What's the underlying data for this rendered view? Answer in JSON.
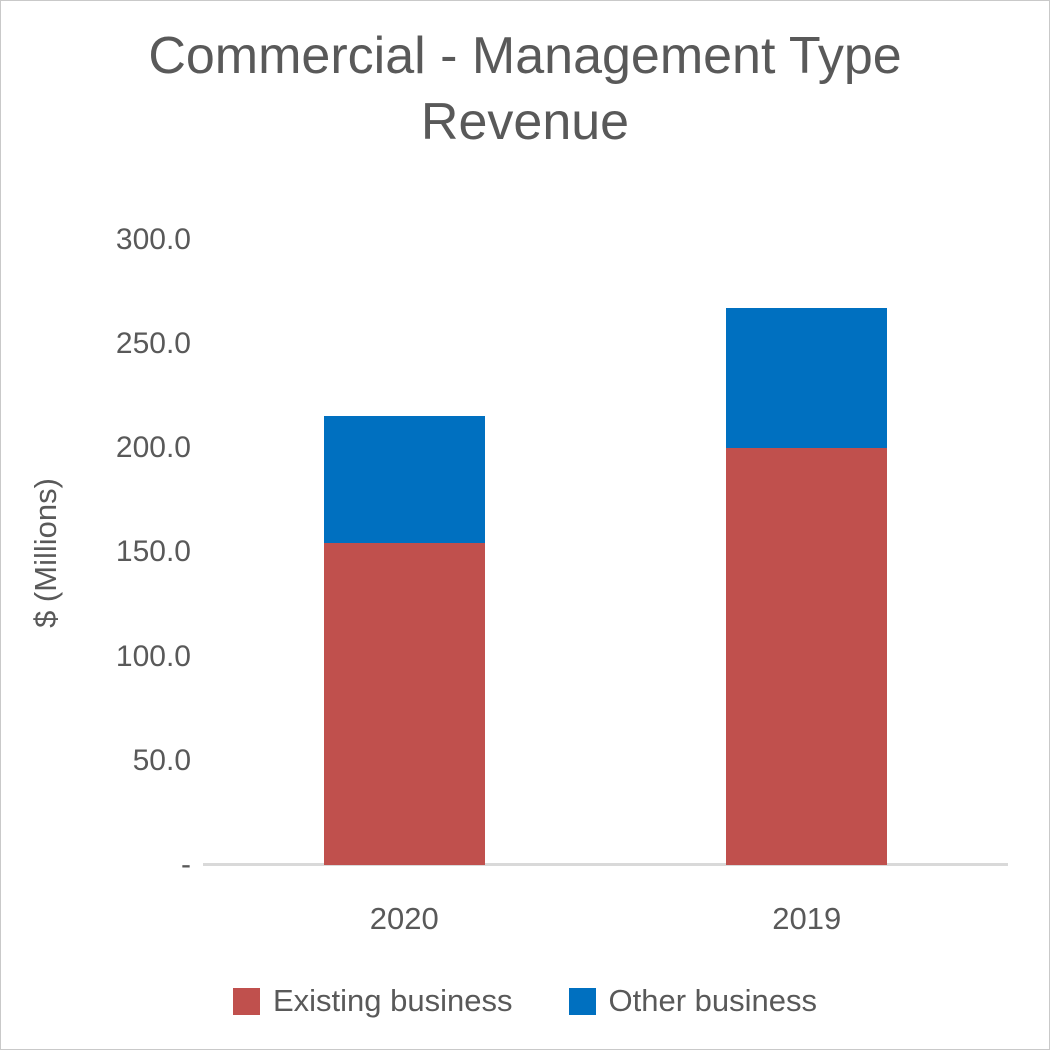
{
  "page": {
    "background": "#ffffff",
    "border_color": "#c9c9c9"
  },
  "chart_data": {
    "type": "bar",
    "stacked": true,
    "title": "Commercial - Management Type Revenue",
    "ylabel": "$ (Millions)",
    "xlabel": "",
    "categories": [
      "2020",
      "2019"
    ],
    "series": [
      {
        "name": "Existing business",
        "color": "#C0504D",
        "values": [
          154.4,
          200.0
        ]
      },
      {
        "name": "Other business",
        "color": "#0070C0",
        "values": [
          60.9,
          67.2
        ]
      }
    ],
    "totals": [
      215.3,
      267.2
    ],
    "ylim": [
      0,
      300
    ],
    "ytick_step": 50,
    "yticks": [
      {
        "value": 300,
        "label": "300.0"
      },
      {
        "value": 250,
        "label": "250.0"
      },
      {
        "value": 200,
        "label": "200.0"
      },
      {
        "value": 150,
        "label": "150.0"
      },
      {
        "value": 100,
        "label": "100.0"
      },
      {
        "value": 50,
        "label": "50.0"
      },
      {
        "value": 0,
        "label": "-"
      }
    ],
    "grid": false,
    "legend_position": "bottom",
    "text_color": "#595959",
    "axis_line_color": "#D9D9D9"
  }
}
